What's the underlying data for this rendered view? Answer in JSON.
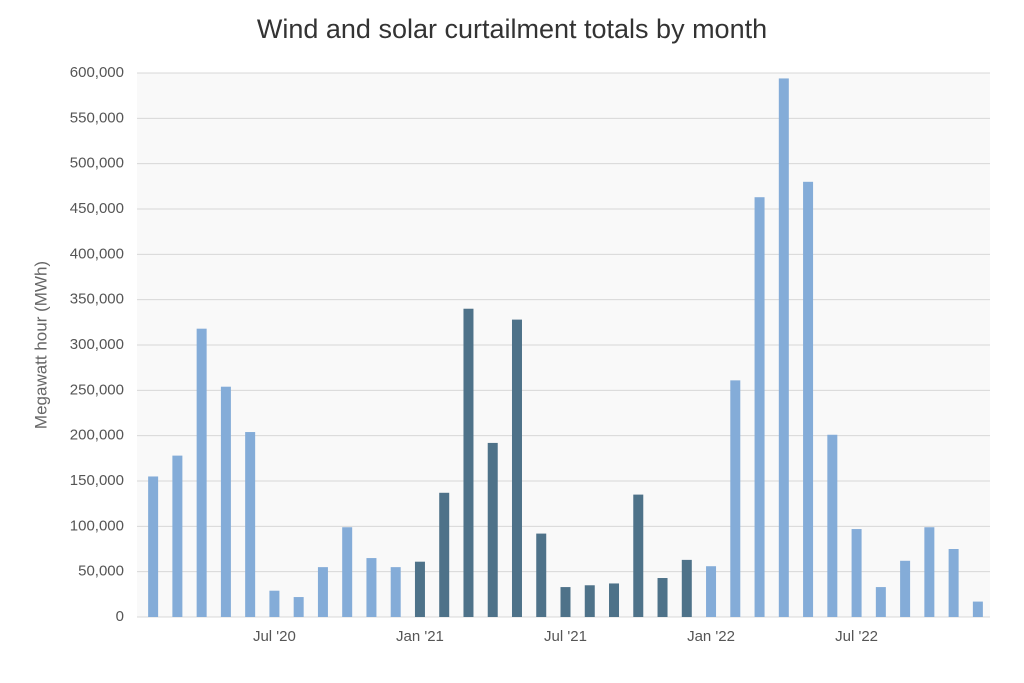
{
  "chart_data": {
    "type": "bar",
    "title": "Wind and solar curtailment totals by month",
    "y_label": "Megawatt hour (MWh)",
    "categories": [
      null,
      null,
      null,
      null,
      null,
      "Jul '20",
      null,
      null,
      null,
      null,
      null,
      "Jan '21",
      null,
      null,
      null,
      null,
      null,
      "Jul '21",
      null,
      null,
      null,
      null,
      null,
      "Jan '22",
      null,
      null,
      null,
      null,
      null,
      "Jul '22",
      null,
      null,
      null,
      null,
      null
    ],
    "values": [
      155000,
      178000,
      318000,
      254000,
      204000,
      29000,
      22000,
      55000,
      99000,
      65000,
      55000,
      61000,
      137000,
      340000,
      192000,
      328000,
      92000,
      33000,
      35000,
      37000,
      135000,
      43000,
      63000,
      56000,
      261000,
      463000,
      594000,
      480000,
      201000,
      97000,
      33000,
      62000,
      99000,
      75000,
      17000
    ],
    "colors": [
      "#84acd8",
      "#84acd8",
      "#84acd8",
      "#84acd8",
      "#84acd8",
      "#84acd8",
      "#84acd8",
      "#84acd8",
      "#84acd8",
      "#84acd8",
      "#84acd8",
      "#4e7289",
      "#4e7289",
      "#4e7289",
      "#4e7289",
      "#4e7289",
      "#4e7289",
      "#4e7289",
      "#4e7289",
      "#4e7289",
      "#4e7289",
      "#4e7289",
      "#4e7289",
      "#84acd8",
      "#84acd8",
      "#84acd8",
      "#84acd8",
      "#84acd8",
      "#84acd8",
      "#84acd8",
      "#84acd8",
      "#84acd8",
      "#84acd8",
      "#84acd8",
      "#84acd8"
    ],
    "ylim": [
      0,
      600000
    ],
    "yticks": [
      0,
      {
        "value": 50000,
        "label": "50,000"
      },
      {
        "value": 100000,
        "label": "100,000"
      },
      {
        "value": 150000,
        "label": "150,000"
      },
      {
        "value": 200000,
        "label": "200,000"
      },
      {
        "value": 250000,
        "label": "250,000"
      },
      {
        "value": 300000,
        "label": "300,000"
      },
      {
        "value": 350000,
        "label": "350,000"
      },
      {
        "value": 400000,
        "label": "400,000"
      },
      {
        "value": 450000,
        "label": "450,000"
      },
      {
        "value": 500000,
        "label": "500,000"
      },
      {
        "value": 550000,
        "label": "550,000"
      },
      {
        "value": 600000,
        "label": "600,000"
      }
    ],
    "grid": true
  }
}
